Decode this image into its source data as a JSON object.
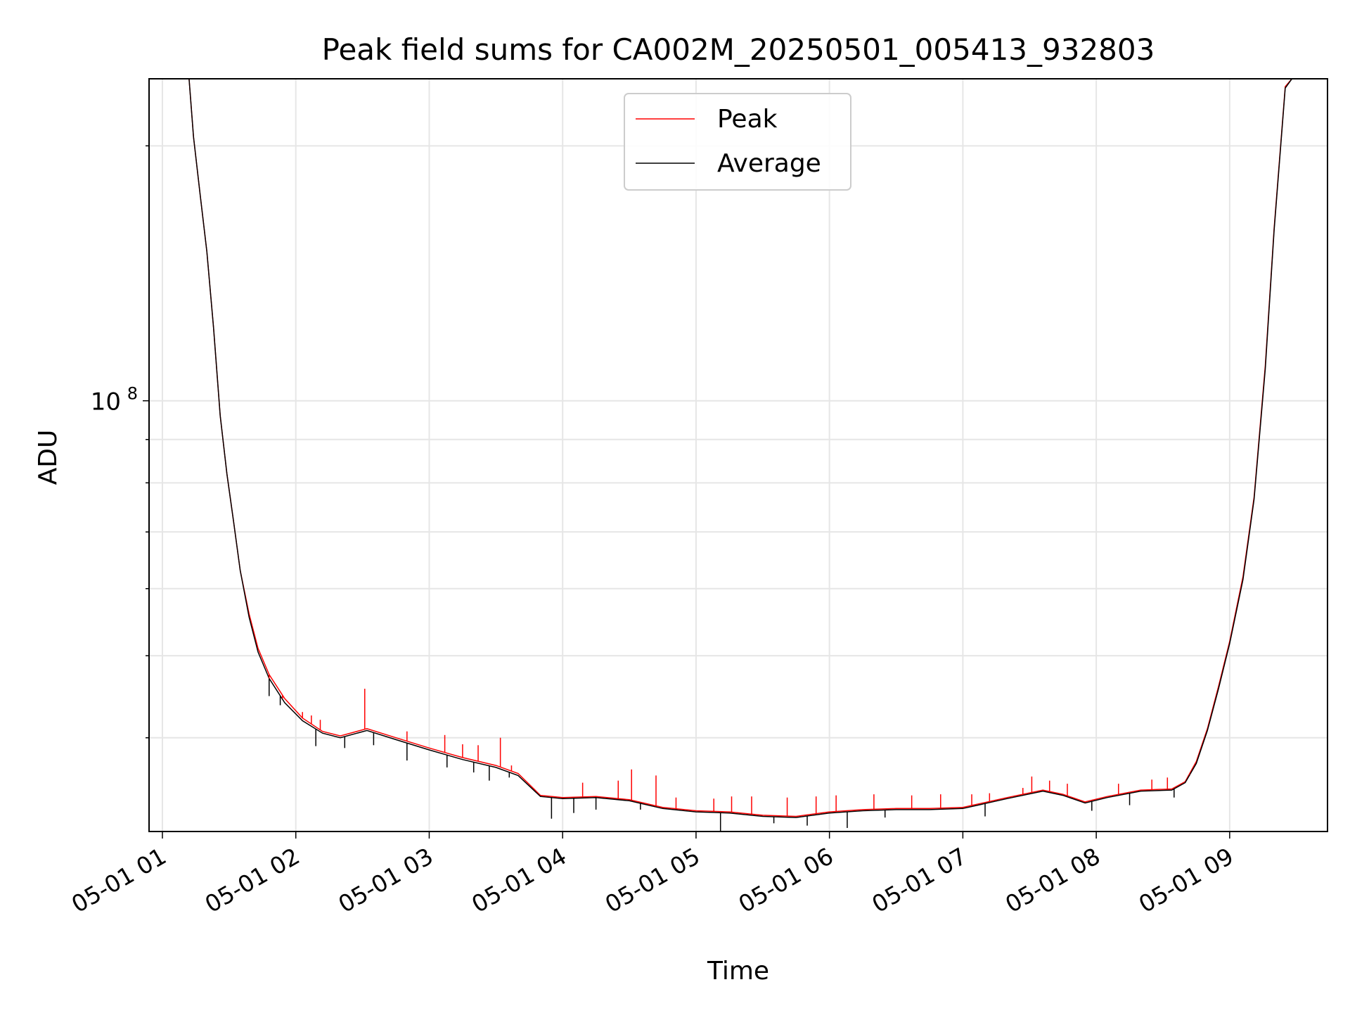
{
  "chart_data": {
    "type": "line",
    "title": "Peak field sums for CA002M_20250501_005413_932803",
    "xlabel": "Time",
    "ylabel": "ADU",
    "y_scale": "log",
    "x_ticks": [
      "05-01 01",
      "05-01 02",
      "05-01 03",
      "05-01 04",
      "05-01 05",
      "05-01 06",
      "05-01 07",
      "05-01 08",
      "05-01 09"
    ],
    "y_major_tick": {
      "mantissa": "10",
      "exponent": "8",
      "value": 100000000
    },
    "x_range": [
      "2025-05-01 00:54",
      "2025-05-01 09:44"
    ],
    "y_range": [
      31000000,
      240000000
    ],
    "grid": true,
    "legend_position": "upper center",
    "colors": {
      "peak": "#ff0000",
      "average": "#000000",
      "grid": "#e6e6e6"
    },
    "series": [
      {
        "name": "Peak",
        "color": "#ff0000",
        "points": [
          [
            "2025-05-01 00:54",
            240000000
          ],
          [
            "2025-05-01 01:12",
            240000000
          ],
          [
            "2025-05-01 01:14",
            205000000
          ],
          [
            "2025-05-01 01:17",
            175000000
          ],
          [
            "2025-05-01 01:20",
            150000000
          ],
          [
            "2025-05-01 01:23",
            122000000
          ],
          [
            "2025-05-01 01:26",
            96000000
          ],
          [
            "2025-05-01 01:29",
            82000000
          ],
          [
            "2025-05-01 01:32",
            72000000
          ],
          [
            "2025-05-01 01:35",
            63000000
          ],
          [
            "2025-05-01 01:39",
            56000000
          ],
          [
            "2025-05-01 01:43",
            51000000
          ],
          [
            "2025-05-01 01:48",
            47500000
          ],
          [
            "2025-05-01 01:55",
            44500000
          ],
          [
            "2025-05-01 02:03",
            42200000
          ],
          [
            "2025-05-01 02:12",
            40700000
          ],
          [
            "2025-05-01 02:20",
            40200000
          ],
          [
            "2025-05-01 02:32",
            41000000
          ],
          [
            "2025-05-01 02:45",
            40000000
          ],
          [
            "2025-05-01 03:00",
            38900000
          ],
          [
            "2025-05-01 03:15",
            37900000
          ],
          [
            "2025-05-01 03:30",
            37100000
          ],
          [
            "2025-05-01 03:40",
            36300000
          ],
          [
            "2025-05-01 03:50",
            34200000
          ],
          [
            "2025-05-01 04:00",
            34000000
          ],
          [
            "2025-05-01 04:15",
            34100000
          ],
          [
            "2025-05-01 04:30",
            33800000
          ],
          [
            "2025-05-01 04:45",
            33100000
          ],
          [
            "2025-05-01 05:00",
            32800000
          ],
          [
            "2025-05-01 05:15",
            32700000
          ],
          [
            "2025-05-01 05:30",
            32400000
          ],
          [
            "2025-05-01 05:45",
            32300000
          ],
          [
            "2025-05-01 06:00",
            32700000
          ],
          [
            "2025-05-01 06:15",
            32900000
          ],
          [
            "2025-05-01 06:30",
            33000000
          ],
          [
            "2025-05-01 06:45",
            33000000
          ],
          [
            "2025-05-01 07:00",
            33100000
          ],
          [
            "2025-05-01 07:20",
            34000000
          ],
          [
            "2025-05-01 07:36",
            34700000
          ],
          [
            "2025-05-01 07:45",
            34300000
          ],
          [
            "2025-05-01 07:55",
            33600000
          ],
          [
            "2025-05-01 08:05",
            34100000
          ],
          [
            "2025-05-01 08:20",
            34700000
          ],
          [
            "2025-05-01 08:34",
            34800000
          ],
          [
            "2025-05-01 08:40",
            35500000
          ],
          [
            "2025-05-01 08:45",
            37500000
          ],
          [
            "2025-05-01 08:50",
            41000000
          ],
          [
            "2025-05-01 08:55",
            46000000
          ],
          [
            "2025-05-01 09:00",
            52000000
          ],
          [
            "2025-05-01 09:06",
            62000000
          ],
          [
            "2025-05-01 09:11",
            77000000
          ],
          [
            "2025-05-01 09:16",
            110000000
          ],
          [
            "2025-05-01 09:20",
            160000000
          ],
          [
            "2025-05-01 09:25",
            235000000
          ],
          [
            "2025-05-01 09:28",
            240000000
          ],
          [
            "2025-05-01 09:44",
            240000000
          ]
        ],
        "spikes": [
          [
            "2025-05-01 01:48",
            46000000
          ],
          [
            "2025-05-01 01:54",
            44500000
          ],
          [
            "2025-05-01 01:58",
            43600000
          ],
          [
            "2025-05-01 02:03",
            42900000
          ],
          [
            "2025-05-01 02:07",
            42500000
          ],
          [
            "2025-05-01 02:11",
            42000000
          ],
          [
            "2025-05-01 02:31",
            45700000
          ],
          [
            "2025-05-01 02:50",
            40700000
          ],
          [
            "2025-05-01 03:07",
            40300000
          ],
          [
            "2025-05-01 03:15",
            39300000
          ],
          [
            "2025-05-01 03:22",
            39200000
          ],
          [
            "2025-05-01 03:32",
            40000000
          ],
          [
            "2025-05-01 03:37",
            37100000
          ],
          [
            "2025-05-01 04:09",
            35400000
          ],
          [
            "2025-05-01 04:25",
            35600000
          ],
          [
            "2025-05-01 04:31",
            36700000
          ],
          [
            "2025-05-01 04:42",
            36100000
          ],
          [
            "2025-05-01 04:51",
            34000000
          ],
          [
            "2025-05-01 05:08",
            33900000
          ],
          [
            "2025-05-01 05:16",
            34100000
          ],
          [
            "2025-05-01 05:25",
            34100000
          ],
          [
            "2025-05-01 05:41",
            34000000
          ],
          [
            "2025-05-01 05:54",
            34100000
          ],
          [
            "2025-05-01 06:03",
            34200000
          ],
          [
            "2025-05-01 06:20",
            34300000
          ],
          [
            "2025-05-01 06:37",
            34200000
          ],
          [
            "2025-05-01 06:50",
            34300000
          ],
          [
            "2025-05-01 07:04",
            34300000
          ],
          [
            "2025-05-01 07:12",
            34400000
          ],
          [
            "2025-05-01 07:27",
            34900000
          ],
          [
            "2025-05-01 07:31",
            36000000
          ],
          [
            "2025-05-01 07:39",
            35600000
          ],
          [
            "2025-05-01 07:47",
            35300000
          ],
          [
            "2025-05-01 08:10",
            35300000
          ],
          [
            "2025-05-01 08:25",
            35700000
          ],
          [
            "2025-05-01 08:32",
            35900000
          ],
          [
            "2025-05-01 08:42",
            36200000
          ]
        ]
      },
      {
        "name": "Average",
        "color": "#000000",
        "points": [
          [
            "2025-05-01 00:54",
            240000000
          ],
          [
            "2025-05-01 01:12",
            240000000
          ],
          [
            "2025-05-01 01:14",
            205000000
          ],
          [
            "2025-05-01 01:17",
            175000000
          ],
          [
            "2025-05-01 01:20",
            150000000
          ],
          [
            "2025-05-01 01:23",
            122000000
          ],
          [
            "2025-05-01 01:26",
            96000000
          ],
          [
            "2025-05-01 01:29",
            82000000
          ],
          [
            "2025-05-01 01:32",
            72000000
          ],
          [
            "2025-05-01 01:35",
            63000000
          ],
          [
            "2025-05-01 01:39",
            55500000
          ],
          [
            "2025-05-01 01:43",
            50500000
          ],
          [
            "2025-05-01 01:48",
            47000000
          ],
          [
            "2025-05-01 01:55",
            44000000
          ],
          [
            "2025-05-01 02:03",
            41900000
          ],
          [
            "2025-05-01 02:12",
            40500000
          ],
          [
            "2025-05-01 02:20",
            40000000
          ],
          [
            "2025-05-01 02:32",
            40800000
          ],
          [
            "2025-05-01 02:45",
            39800000
          ],
          [
            "2025-05-01 03:00",
            38700000
          ],
          [
            "2025-05-01 03:15",
            37700000
          ],
          [
            "2025-05-01 03:30",
            36900000
          ],
          [
            "2025-05-01 03:40",
            36100000
          ],
          [
            "2025-05-01 03:50",
            34100000
          ],
          [
            "2025-05-01 04:00",
            33900000
          ],
          [
            "2025-05-01 04:15",
            34000000
          ],
          [
            "2025-05-01 04:30",
            33700000
          ],
          [
            "2025-05-01 04:45",
            33000000
          ],
          [
            "2025-05-01 05:00",
            32700000
          ],
          [
            "2025-05-01 05:15",
            32600000
          ],
          [
            "2025-05-01 05:30",
            32300000
          ],
          [
            "2025-05-01 05:45",
            32200000
          ],
          [
            "2025-05-01 06:00",
            32600000
          ],
          [
            "2025-05-01 06:15",
            32800000
          ],
          [
            "2025-05-01 06:30",
            32900000
          ],
          [
            "2025-05-01 06:45",
            32900000
          ],
          [
            "2025-05-01 07:00",
            33000000
          ],
          [
            "2025-05-01 07:20",
            33900000
          ],
          [
            "2025-05-01 07:36",
            34600000
          ],
          [
            "2025-05-01 07:45",
            34200000
          ],
          [
            "2025-05-01 07:55",
            33500000
          ],
          [
            "2025-05-01 08:05",
            34000000
          ],
          [
            "2025-05-01 08:20",
            34600000
          ],
          [
            "2025-05-01 08:34",
            34700000
          ],
          [
            "2025-05-01 08:40",
            35400000
          ],
          [
            "2025-05-01 08:45",
            37300000
          ],
          [
            "2025-05-01 08:50",
            40800000
          ],
          [
            "2025-05-01 08:55",
            45700000
          ],
          [
            "2025-05-01 09:00",
            51700000
          ],
          [
            "2025-05-01 09:06",
            61500000
          ],
          [
            "2025-05-01 09:11",
            76500000
          ],
          [
            "2025-05-01 09:16",
            109000000
          ],
          [
            "2025-05-01 09:20",
            159000000
          ],
          [
            "2025-05-01 09:25",
            234000000
          ],
          [
            "2025-05-01 09:28",
            240000000
          ],
          [
            "2025-05-01 09:44",
            240000000
          ]
        ],
        "dips": [
          [
            "2025-05-01 01:48",
            44800000
          ],
          [
            "2025-05-01 01:53",
            43700000
          ],
          [
            "2025-05-01 02:09",
            39100000
          ],
          [
            "2025-05-01 02:22",
            38900000
          ],
          [
            "2025-05-01 02:35",
            39200000
          ],
          [
            "2025-05-01 02:50",
            37600000
          ],
          [
            "2025-05-01 03:08",
            36900000
          ],
          [
            "2025-05-01 03:20",
            36400000
          ],
          [
            "2025-05-01 03:27",
            35600000
          ],
          [
            "2025-05-01 03:36",
            35900000
          ],
          [
            "2025-05-01 03:55",
            32100000
          ],
          [
            "2025-05-01 04:05",
            32600000
          ],
          [
            "2025-05-01 04:15",
            32900000
          ],
          [
            "2025-05-01 04:35",
            32900000
          ],
          [
            "2025-05-01 05:11",
            31000000
          ],
          [
            "2025-05-01 05:35",
            31700000
          ],
          [
            "2025-05-01 05:50",
            31500000
          ],
          [
            "2025-05-01 06:08",
            31300000
          ],
          [
            "2025-05-01 06:25",
            32200000
          ],
          [
            "2025-05-01 07:10",
            32300000
          ],
          [
            "2025-05-01 07:58",
            32800000
          ],
          [
            "2025-05-01 08:15",
            33300000
          ],
          [
            "2025-05-01 08:35",
            34000000
          ]
        ]
      }
    ]
  }
}
